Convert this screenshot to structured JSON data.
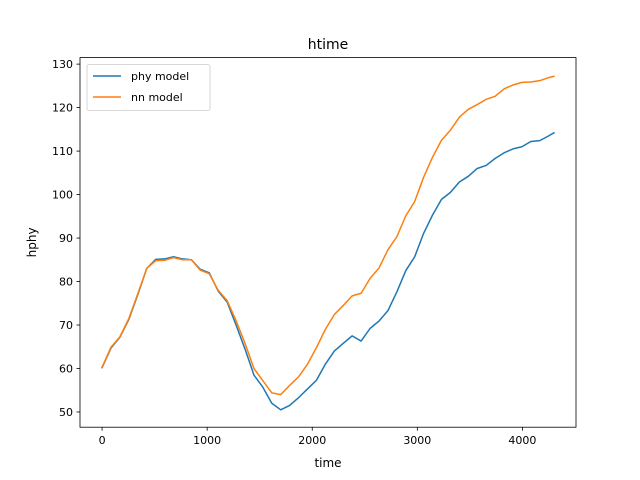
{
  "chart_data": {
    "type": "line",
    "title": "htime",
    "xlabel": "time",
    "ylabel": "hphy",
    "xlim": [
      -210,
      4510
    ],
    "ylim": [
      46.5,
      131.5
    ],
    "xticks": [
      0,
      1000,
      2000,
      3000,
      4000
    ],
    "yticks": [
      50,
      60,
      70,
      80,
      90,
      100,
      110,
      120,
      130
    ],
    "grid": false,
    "legend": "top-left",
    "series": [
      {
        "name": "phy model",
        "color": "#1f77b4",
        "x": [
          0,
          85,
          170,
          255,
          340,
          425,
          510,
          595,
          680,
          765,
          850,
          935,
          1020,
          1105,
          1190,
          1275,
          1360,
          1445,
          1530,
          1615,
          1700,
          1785,
          1870,
          1955,
          2040,
          2125,
          2210,
          2295,
          2380,
          2465,
          2550,
          2635,
          2720,
          2805,
          2890,
          2975,
          3060,
          3145,
          3230,
          3315,
          3400,
          3485,
          3570,
          3655,
          3740,
          3825,
          3910,
          3995,
          4080,
          4165,
          4250,
          4300
        ],
        "values": [
          60.2,
          64.7,
          67.2,
          71.3,
          77.0,
          83.0,
          85.1,
          85.2,
          85.7,
          85.2,
          85.0,
          82.8,
          82.0,
          77.8,
          75.3,
          70.0,
          64.5,
          58.5,
          55.7,
          52.0,
          50.5,
          51.5,
          53.3,
          55.3,
          57.3,
          61.0,
          64.0,
          65.8,
          67.5,
          66.3,
          69.2,
          70.9,
          73.3,
          77.6,
          82.5,
          85.7,
          91.1,
          95.3,
          98.9,
          100.5,
          102.9,
          104.2,
          106.0,
          106.7,
          108.3,
          109.6,
          110.5,
          111.0,
          112.2,
          112.4,
          113.5,
          114.2
        ]
      },
      {
        "name": "nn model",
        "color": "#ff7f0e",
        "x": [
          0,
          85,
          170,
          255,
          340,
          425,
          510,
          595,
          680,
          765,
          850,
          935,
          1020,
          1105,
          1190,
          1275,
          1360,
          1445,
          1530,
          1615,
          1700,
          1785,
          1870,
          1955,
          2040,
          2125,
          2210,
          2295,
          2380,
          2465,
          2550,
          2635,
          2720,
          2805,
          2890,
          2975,
          3060,
          3145,
          3230,
          3315,
          3400,
          3485,
          3570,
          3655,
          3740,
          3825,
          3910,
          3995,
          4080,
          4165,
          4250,
          4300
        ],
        "values": [
          60.3,
          64.9,
          67.3,
          71.5,
          77.2,
          83.0,
          84.8,
          84.9,
          85.5,
          85.0,
          85.0,
          82.6,
          81.8,
          78.0,
          75.6,
          71.0,
          65.8,
          60.0,
          57.2,
          54.4,
          54.0,
          56.1,
          58.1,
          61.0,
          64.8,
          69.0,
          72.4,
          74.5,
          76.7,
          77.3,
          80.7,
          83.1,
          87.3,
          90.3,
          95.1,
          98.4,
          104.0,
          108.6,
          112.5,
          114.8,
          117.8,
          119.6,
          120.7,
          121.9,
          122.6,
          124.3,
          125.2,
          125.8,
          125.9,
          126.2,
          126.9,
          127.2
        ]
      }
    ]
  }
}
